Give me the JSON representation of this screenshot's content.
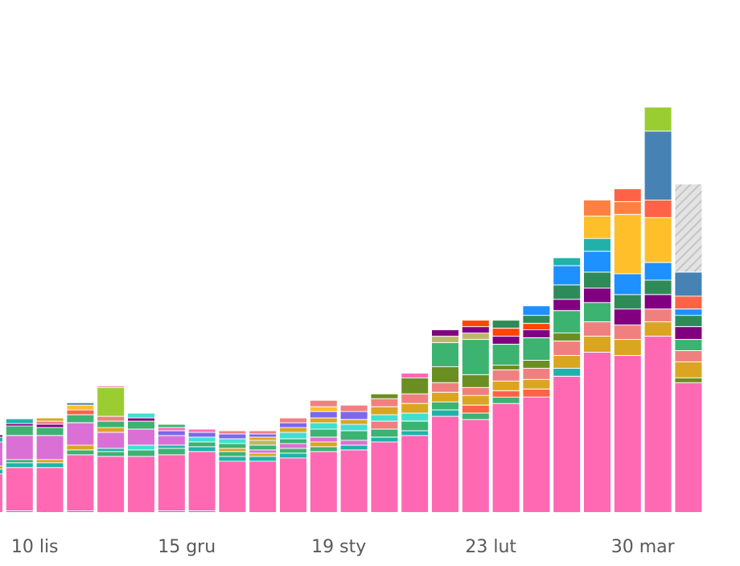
{
  "chart_data": {
    "type": "bar",
    "stacked": true,
    "x_tick_labels": [
      "10 lis",
      "15 gru",
      "19 sty",
      "23 lut",
      "30 mar"
    ],
    "x_tick_positions": [
      1.5,
      6.5,
      11.5,
      16.5,
      21.5
    ],
    "ylim": [
      0,
      600
    ],
    "grid": false,
    "legend": "none",
    "colors": {
      "pink": "#ff69b4",
      "teal": "#20b2aa",
      "orchid": "#da70d6",
      "sea": "#3cb371",
      "gold": "#daa520",
      "salmon": "#f08080",
      "olive": "#6b8e23",
      "purple": "#800080",
      "dkgreen": "#2e8b57",
      "dodger": "#1e90ff",
      "orange": "#ffbf2b",
      "coral": "#ff8040",
      "tomato": "#ff6347",
      "steel": "#4682b4",
      "lime": "#9acd32",
      "khaki": "#bdb76b",
      "slate": "#7b68ee",
      "turq": "#40e0d0",
      "red": "#ff4500",
      "hatched": "#d3d3d3"
    },
    "bars": [
      {
        "segments": [
          [
            "pink",
            48
          ],
          [
            "teal",
            6
          ],
          [
            "gold",
            4
          ],
          [
            "orchid",
            30
          ],
          [
            "teal",
            6
          ],
          [
            "purple",
            3
          ]
        ]
      },
      {
        "segments": [
          [
            "teal",
            2
          ],
          [
            "pink",
            54
          ],
          [
            "teal",
            6
          ],
          [
            "sea",
            4
          ],
          [
            "orchid",
            30
          ],
          [
            "sea",
            12
          ],
          [
            "purple",
            3
          ],
          [
            "teal",
            6
          ]
        ]
      },
      {
        "segments": [
          [
            "pink",
            56
          ],
          [
            "teal",
            6
          ],
          [
            "gold",
            4
          ],
          [
            "orchid",
            30
          ],
          [
            "sea",
            10
          ],
          [
            "purple",
            4
          ],
          [
            "salmon",
            4
          ],
          [
            "gold",
            4
          ]
        ]
      },
      {
        "segments": [
          [
            "teal",
            2
          ],
          [
            "pink",
            70
          ],
          [
            "sea",
            6
          ],
          [
            "gold",
            6
          ],
          [
            "orchid",
            28
          ],
          [
            "sea",
            10
          ],
          [
            "tomato",
            6
          ],
          [
            "orange",
            6
          ],
          [
            "steel",
            3
          ]
        ]
      },
      {
        "segments": [
          [
            "pink",
            70
          ],
          [
            "sea",
            6
          ],
          [
            "teal",
            4
          ],
          [
            "orchid",
            20
          ],
          [
            "gold",
            6
          ],
          [
            "sea",
            8
          ],
          [
            "salmon",
            6
          ],
          [
            "lime",
            36
          ],
          [
            "pink",
            2
          ]
        ]
      },
      {
        "segments": [
          [
            "pink",
            70
          ],
          [
            "sea",
            8
          ],
          [
            "turq",
            6
          ],
          [
            "orchid",
            20
          ],
          [
            "sea",
            10
          ],
          [
            "purple",
            4
          ],
          [
            "turq",
            6
          ]
        ]
      },
      {
        "segments": [
          [
            "teal",
            2
          ],
          [
            "pink",
            70
          ],
          [
            "sea",
            8
          ],
          [
            "teal",
            4
          ],
          [
            "orchid",
            12
          ],
          [
            "slate",
            6
          ],
          [
            "pink",
            4
          ],
          [
            "sea",
            4
          ]
        ]
      },
      {
        "segments": [
          [
            "teal",
            2
          ],
          [
            "pink",
            74
          ],
          [
            "teal",
            6
          ],
          [
            "sea",
            6
          ],
          [
            "turq",
            6
          ],
          [
            "slate",
            6
          ],
          [
            "pink",
            4
          ]
        ]
      },
      {
        "segments": [
          [
            "pink",
            64
          ],
          [
            "teal",
            6
          ],
          [
            "sea",
            6
          ],
          [
            "gold",
            4
          ],
          [
            "sea",
            6
          ],
          [
            "turq",
            6
          ],
          [
            "slate",
            6
          ],
          [
            "salmon",
            4
          ]
        ]
      },
      {
        "segments": [
          [
            "pink",
            64
          ],
          [
            "teal",
            6
          ],
          [
            "gold",
            4
          ],
          [
            "orchid",
            4
          ],
          [
            "sea",
            6
          ],
          [
            "khaki",
            6
          ],
          [
            "gold",
            4
          ],
          [
            "slate",
            4
          ],
          [
            "salmon",
            4
          ]
        ]
      },
      {
        "segments": [
          [
            "pink",
            68
          ],
          [
            "teal",
            6
          ],
          [
            "sea",
            6
          ],
          [
            "orchid",
            6
          ],
          [
            "sea",
            6
          ],
          [
            "turq",
            8
          ],
          [
            "gold",
            6
          ],
          [
            "slate",
            6
          ],
          [
            "salmon",
            6
          ]
        ]
      },
      {
        "segments": [
          [
            "pink",
            76
          ],
          [
            "sea",
            6
          ],
          [
            "gold",
            6
          ],
          [
            "orchid",
            6
          ],
          [
            "sea",
            10
          ],
          [
            "turq",
            8
          ],
          [
            "gold",
            6
          ],
          [
            "slate",
            8
          ],
          [
            "orange",
            6
          ],
          [
            "salmon",
            8
          ]
        ]
      },
      {
        "segments": [
          [
            "pink",
            78
          ],
          [
            "teal",
            6
          ],
          [
            "orchid",
            6
          ],
          [
            "sea",
            12
          ],
          [
            "turq",
            8
          ],
          [
            "gold",
            6
          ],
          [
            "slate",
            10
          ],
          [
            "salmon",
            8
          ]
        ]
      },
      {
        "segments": [
          [
            "pink",
            88
          ],
          [
            "teal",
            6
          ],
          [
            "sea",
            10
          ],
          [
            "salmon",
            10
          ],
          [
            "turq",
            8
          ],
          [
            "gold",
            10
          ],
          [
            "salmon",
            10
          ],
          [
            "olive",
            6
          ]
        ]
      },
      {
        "segments": [
          [
            "pink",
            96
          ],
          [
            "teal",
            6
          ],
          [
            "sea",
            12
          ],
          [
            "turq",
            10
          ],
          [
            "gold",
            12
          ],
          [
            "salmon",
            12
          ],
          [
            "olive",
            20
          ],
          [
            "pink",
            6
          ]
        ]
      },
      {
        "segments": [
          [
            "pink",
            120
          ],
          [
            "teal",
            8
          ],
          [
            "sea",
            10
          ],
          [
            "gold",
            12
          ],
          [
            "salmon",
            12
          ],
          [
            "olive",
            20
          ],
          [
            "sea",
            30
          ],
          [
            "khaki",
            8
          ],
          [
            "purple",
            8
          ]
        ]
      },
      {
        "segments": [
          [
            "pink",
            116
          ],
          [
            "sea",
            8
          ],
          [
            "tomato",
            10
          ],
          [
            "gold",
            12
          ],
          [
            "salmon",
            10
          ],
          [
            "olive",
            16
          ],
          [
            "sea",
            44
          ],
          [
            "khaki",
            8
          ],
          [
            "purple",
            8
          ],
          [
            "red",
            8
          ]
        ]
      },
      {
        "segments": [
          [
            "pink",
            136
          ],
          [
            "sea",
            8
          ],
          [
            "tomato",
            8
          ],
          [
            "gold",
            12
          ],
          [
            "salmon",
            14
          ],
          [
            "olive",
            6
          ],
          [
            "sea",
            26
          ],
          [
            "purple",
            10
          ],
          [
            "red",
            10
          ],
          [
            "dkgreen",
            10
          ]
        ]
      },
      {
        "segments": [
          [
            "pink",
            144
          ],
          [
            "tomato",
            10
          ],
          [
            "gold",
            12
          ],
          [
            "salmon",
            14
          ],
          [
            "olive",
            10
          ],
          [
            "sea",
            28
          ],
          [
            "purple",
            10
          ],
          [
            "red",
            8
          ],
          [
            "dkgreen",
            10
          ],
          [
            "dodger",
            12
          ]
        ]
      },
      {
        "segments": [
          [
            "pink",
            170
          ],
          [
            "teal",
            10
          ],
          [
            "gold",
            16
          ],
          [
            "salmon",
            18
          ],
          [
            "olive",
            10
          ],
          [
            "sea",
            28
          ],
          [
            "purple",
            14
          ],
          [
            "dkgreen",
            18
          ],
          [
            "dodger",
            24
          ],
          [
            "teal",
            10
          ]
        ]
      },
      {
        "segments": [
          [
            "pink",
            200
          ],
          [
            "gold",
            20
          ],
          [
            "salmon",
            18
          ],
          [
            "sea",
            24
          ],
          [
            "purple",
            18
          ],
          [
            "dkgreen",
            20
          ],
          [
            "dodger",
            26
          ],
          [
            "teal",
            16
          ],
          [
            "orange",
            28
          ],
          [
            "coral",
            20
          ]
        ]
      },
      {
        "segments": [
          [
            "pink",
            196
          ],
          [
            "gold",
            20
          ],
          [
            "salmon",
            18
          ],
          [
            "purple",
            20
          ],
          [
            "dkgreen",
            18
          ],
          [
            "dodger",
            26
          ],
          [
            "orange",
            74
          ],
          [
            "coral",
            16
          ],
          [
            "tomato",
            16
          ]
        ]
      },
      {
        "segments": [
          [
            "pink",
            220
          ],
          [
            "gold",
            18
          ],
          [
            "salmon",
            16
          ],
          [
            "purple",
            18
          ],
          [
            "dkgreen",
            18
          ],
          [
            "dodger",
            22
          ],
          [
            "orange",
            56
          ],
          [
            "tomato",
            22
          ],
          [
            "steel",
            86
          ],
          [
            "lime",
            30
          ]
        ]
      },
      {
        "segments": [
          [
            "pink",
            162
          ],
          [
            "olive",
            6
          ],
          [
            "gold",
            20
          ],
          [
            "salmon",
            14
          ],
          [
            "sea",
            14
          ],
          [
            "purple",
            16
          ],
          [
            "dkgreen",
            14
          ],
          [
            "dodger",
            8
          ],
          [
            "tomato",
            16
          ],
          [
            "steel",
            30
          ],
          [
            "hatched",
            110
          ]
        ]
      }
    ]
  }
}
